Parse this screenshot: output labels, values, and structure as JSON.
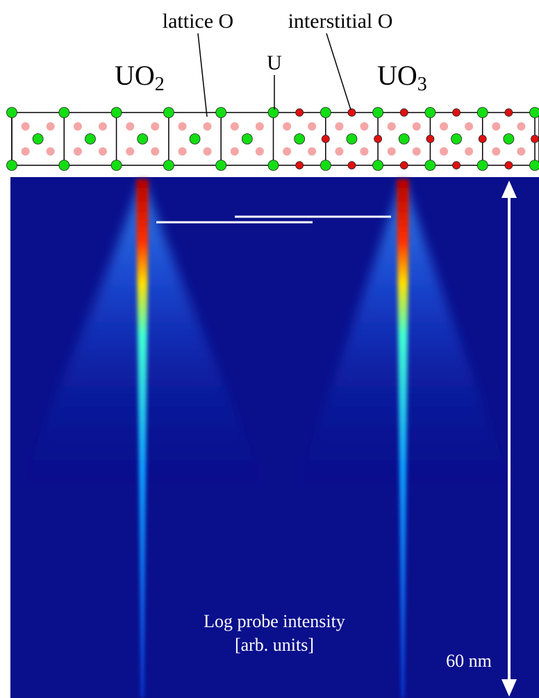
{
  "labels": {
    "lattice_o": "lattice O",
    "interstitial_o": "interstitial O",
    "u": "U"
  },
  "phases": [
    {
      "main": "UO",
      "sub": "2"
    },
    {
      "main": "UO",
      "sub": "3"
    }
  ],
  "heatmap": {
    "caption_line1": "Log probe intensity",
    "caption_line2": "[arb. units]",
    "scale": "60 nm"
  }
}
